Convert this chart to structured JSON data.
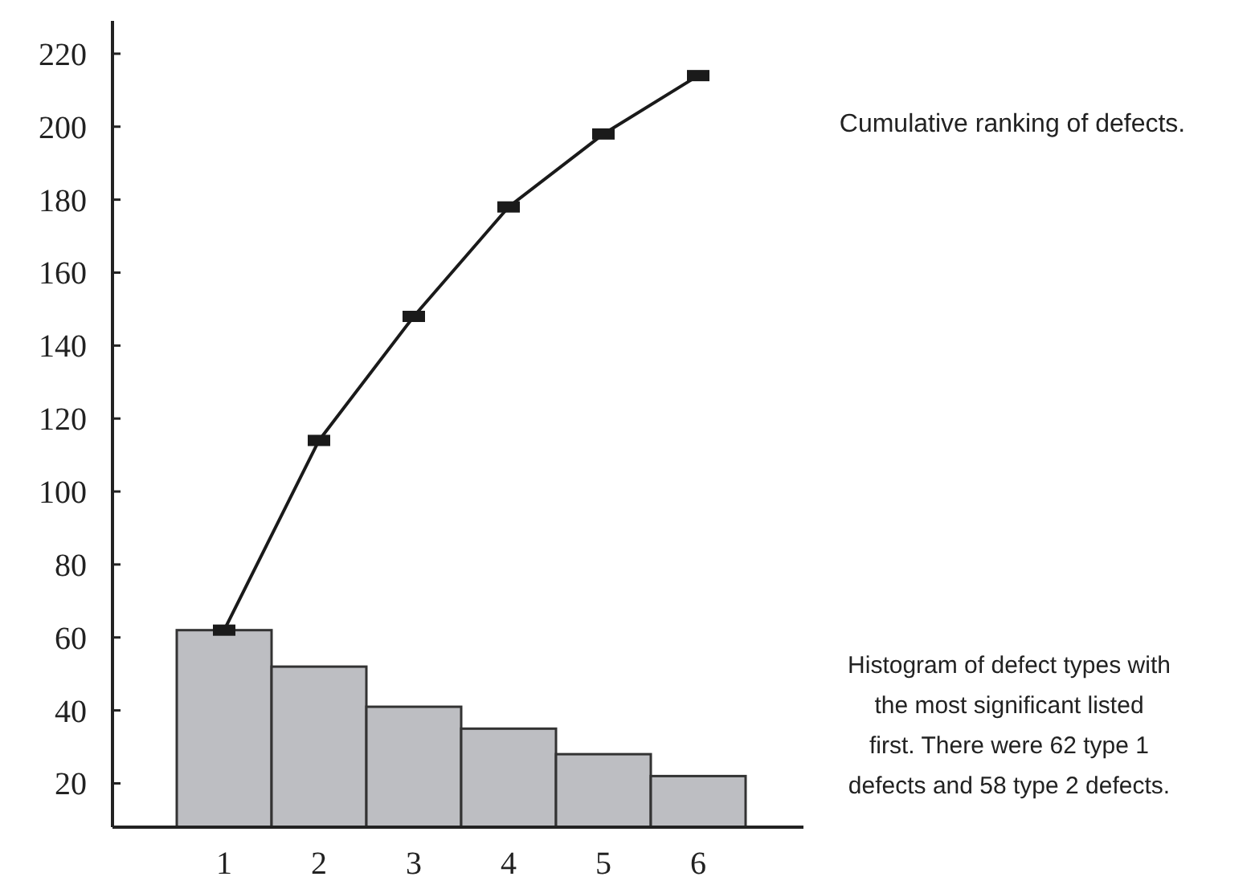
{
  "chart_data": {
    "type": "bar",
    "categories": [
      "1",
      "2",
      "3",
      "4",
      "5",
      "6"
    ],
    "series": [
      {
        "color": "#bdbec2",
        "values": [
          62,
          52,
          41,
          35,
          28,
          22
        ]
      },
      {
        "type": "line",
        "color": "#1a1a1a",
        "marker": "square",
        "values": [
          62,
          114,
          148,
          178,
          198,
          214
        ]
      }
    ],
    "ylim": [
      8,
      229
    ],
    "yticks": [
      20,
      40,
      60,
      80,
      100,
      120,
      140,
      160,
      180,
      200,
      220
    ],
    "grid": false,
    "annotations": [
      "Cumulative ranking of defects.",
      "Histogram of defect types with the most significant listed first. There were 62 type 1 defects and 58 type 2 defects."
    ]
  }
}
